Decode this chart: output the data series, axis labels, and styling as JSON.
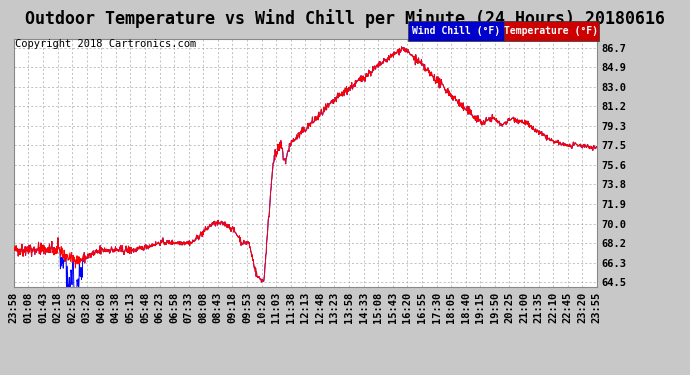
{
  "title": "Outdoor Temperature vs Wind Chill per Minute (24 Hours) 20180616",
  "copyright": "Copyright 2018 Cartronics.com",
  "yticks": [
    64.5,
    66.3,
    68.2,
    70.0,
    71.9,
    73.8,
    75.6,
    77.5,
    79.3,
    81.2,
    83.0,
    84.9,
    86.7
  ],
  "ylim": [
    64.0,
    87.5
  ],
  "bg_color": "#c8c8c8",
  "plot_bg_color": "#ffffff",
  "grid_color": "#aaaaaa",
  "temp_color": "#ff0000",
  "windchill_color": "#0000ff",
  "legend_windchill_bg": "#0000cc",
  "legend_temp_bg": "#cc0000",
  "title_fontsize": 12,
  "copyright_fontsize": 7.5,
  "tick_fontsize": 7.5,
  "n_points": 1440,
  "xtick_labels": [
    "23:58",
    "01:08",
    "01:43",
    "02:18",
    "02:53",
    "03:28",
    "04:03",
    "04:38",
    "05:13",
    "05:48",
    "06:23",
    "06:58",
    "07:33",
    "08:08",
    "08:43",
    "09:18",
    "09:53",
    "10:28",
    "11:03",
    "11:38",
    "12:13",
    "12:48",
    "13:23",
    "13:58",
    "14:33",
    "15:08",
    "15:43",
    "16:20",
    "16:55",
    "17:30",
    "18:05",
    "18:40",
    "19:15",
    "19:50",
    "20:25",
    "21:00",
    "21:35",
    "22:10",
    "22:45",
    "23:20",
    "23:55"
  ]
}
